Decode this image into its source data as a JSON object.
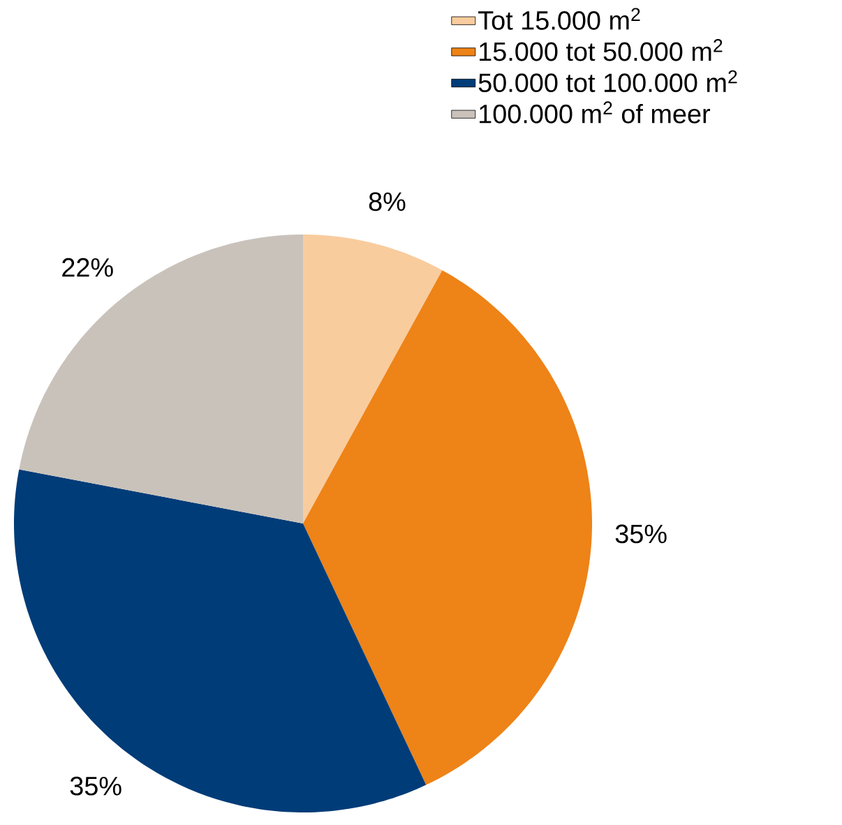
{
  "chart_data": {
    "type": "pie",
    "categories": [
      "Tot 15.000 m$^{2}$",
      "15.000 tot 50.000 m$^{2}$",
      "50.000 tot 100.000 m$^{2}$",
      "100.000 m$^{2}$ of meer"
    ],
    "values": [
      8,
      35,
      35,
      22
    ],
    "colors": [
      "#f9cc9e",
      "#ee8317",
      "#003c78",
      "#c9c2bb"
    ],
    "value_labels": [
      "8%",
      "35%",
      "35%",
      "22%"
    ],
    "legend": "top right"
  }
}
